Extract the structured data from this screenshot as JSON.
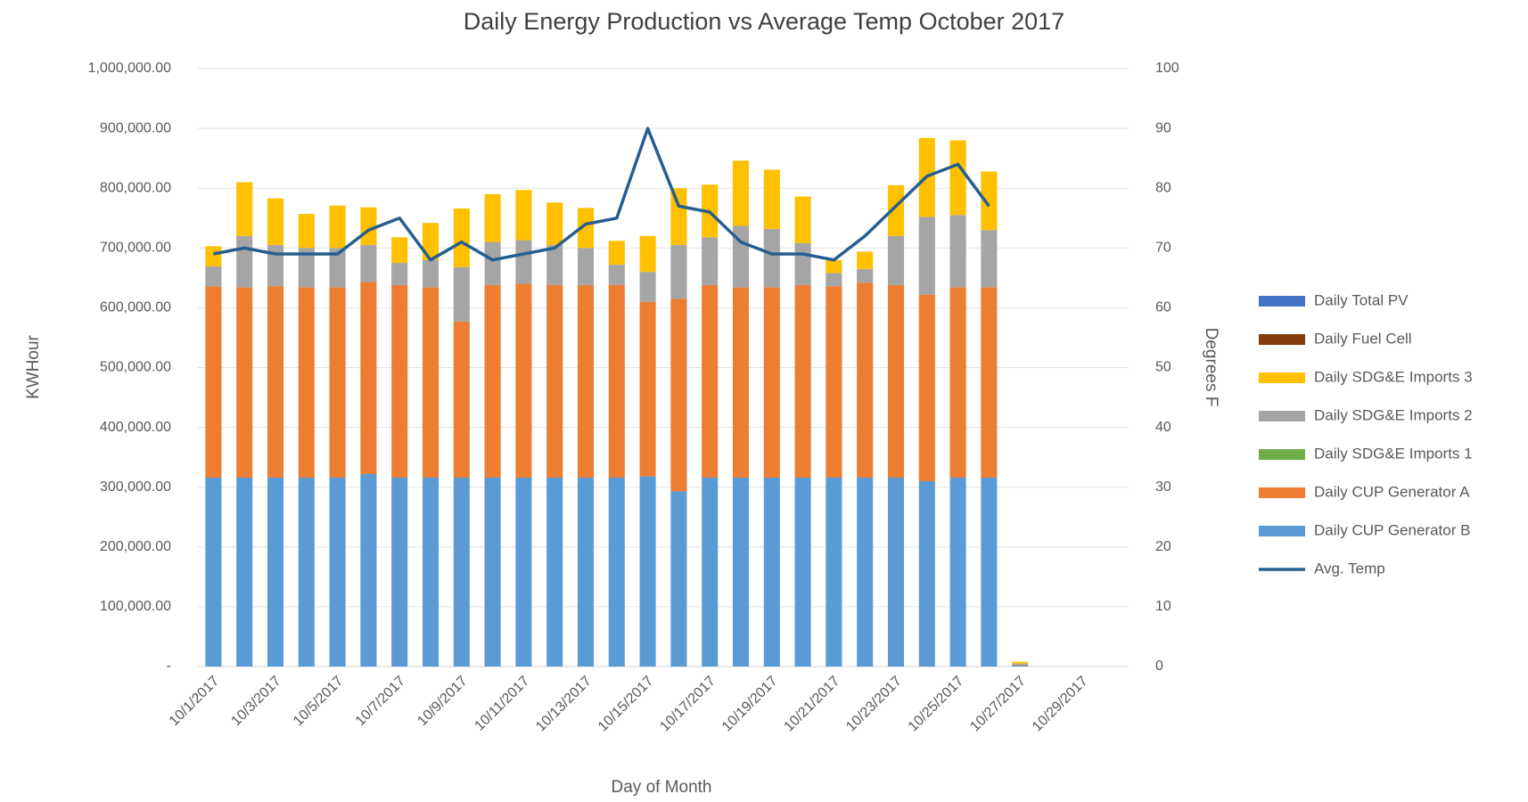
{
  "chart_data": {
    "type": "bar",
    "stacked": true,
    "title": "Daily Energy Production vs Average Temp October 2017",
    "x_label": "Day of Month",
    "y_label": "KWHour",
    "y2_label": "Degrees F",
    "categories": [
      "10/1/2017",
      null,
      "10/3/2017",
      null,
      "10/5/2017",
      null,
      "10/7/2017",
      null,
      "10/9/2017",
      null,
      "10/11/2017",
      null,
      "10/13/2017",
      null,
      "10/15/2017",
      null,
      "10/17/2017",
      null,
      "10/19/2017",
      null,
      "10/21/2017",
      null,
      "10/23/2017",
      null,
      "10/25/2017",
      null,
      "10/27/2017",
      null,
      "10/29/2017",
      null
    ],
    "ylim": [
      0,
      1000000
    ],
    "yticks": [
      {
        "value": 0,
        "label": "-"
      },
      {
        "value": 100000,
        "label": "100,000.00"
      },
      {
        "value": 200000,
        "label": "200,000.00"
      },
      {
        "value": 300000,
        "label": "300,000.00"
      },
      {
        "value": 400000,
        "label": "400,000.00"
      },
      {
        "value": 500000,
        "label": "500,000.00"
      },
      {
        "value": 600000,
        "label": "600,000.00"
      },
      {
        "value": 700000,
        "label": "700,000.00"
      },
      {
        "value": 800000,
        "label": "800,000.00"
      },
      {
        "value": 900000,
        "label": "900,000.00"
      },
      {
        "value": 1000000,
        "label": "1,000,000.00"
      }
    ],
    "y2lim": [
      0,
      100
    ],
    "y2ticks": [
      0,
      10,
      20,
      30,
      40,
      50,
      60,
      70,
      80,
      90,
      100
    ],
    "grid": true,
    "legend": "right",
    "series": [
      {
        "name": "Daily Total PV",
        "color": "#4472c4",
        "values": [
          0,
          0,
          0,
          0,
          0,
          0,
          0,
          0,
          0,
          0,
          0,
          0,
          0,
          0,
          0,
          0,
          0,
          0,
          0,
          0,
          0,
          0,
          0,
          0,
          0,
          0,
          0,
          null,
          null,
          null
        ]
      },
      {
        "name": "Daily Fuel Cell",
        "color": "#843c0c",
        "values": [
          0,
          0,
          0,
          0,
          0,
          0,
          0,
          0,
          0,
          0,
          0,
          0,
          0,
          0,
          0,
          0,
          0,
          0,
          0,
          0,
          0,
          0,
          0,
          0,
          0,
          0,
          0,
          null,
          null,
          null
        ]
      },
      {
        "name": "Daily SDG&E Imports 3",
        "color": "#ffc000",
        "values": [
          34000,
          90000,
          78000,
          57000,
          71000,
          63000,
          43000,
          62000,
          98000,
          80000,
          84000,
          71000,
          67000,
          40000,
          60000,
          95000,
          88000,
          109000,
          99000,
          78000,
          22000,
          29000,
          85000,
          132000,
          125000,
          98000,
          3000,
          null,
          null,
          null
        ]
      },
      {
        "name": "Daily SDG&E Imports 2",
        "color": "#a5a5a5",
        "values": [
          33000,
          86000,
          69000,
          66000,
          66000,
          62000,
          37000,
          46000,
          91000,
          72000,
          73000,
          67000,
          62000,
          34000,
          50000,
          90000,
          80000,
          103000,
          98000,
          70000,
          22000,
          23000,
          82000,
          130000,
          121000,
          96000,
          2000,
          null,
          null,
          null
        ]
      },
      {
        "name": "Daily SDG&E Imports 1",
        "color": "#70ad47",
        "values": [
          0,
          0,
          0,
          0,
          0,
          0,
          0,
          0,
          0,
          0,
          0,
          0,
          0,
          0,
          0,
          0,
          0,
          0,
          0,
          0,
          0,
          0,
          0,
          0,
          0,
          0,
          0,
          null,
          null,
          null
        ]
      },
      {
        "name": "Daily CUP Generator A",
        "color": "#ed7d31",
        "values": [
          320000,
          318000,
          320000,
          318000,
          318000,
          321000,
          322000,
          318000,
          261000,
          322000,
          324000,
          322000,
          322000,
          322000,
          292000,
          322000,
          322000,
          318000,
          318000,
          322000,
          320000,
          326000,
          322000,
          312000,
          318000,
          318000,
          1000,
          null,
          null,
          null
        ]
      },
      {
        "name": "Daily CUP Generator B",
        "color": "#5b9bd5",
        "values": [
          316000,
          316000,
          316000,
          316000,
          316000,
          322000,
          316000,
          316000,
          316000,
          316000,
          316000,
          316000,
          316000,
          316000,
          318000,
          293000,
          316000,
          316000,
          316000,
          316000,
          316000,
          316000,
          316000,
          310000,
          316000,
          316000,
          2000,
          null,
          null,
          null
        ]
      },
      {
        "name": "Avg. Temp",
        "color": "#255e91",
        "type": "line",
        "axis": "y2",
        "values": [
          69,
          70,
          69,
          69,
          69,
          73,
          75,
          68,
          71,
          68,
          69,
          70,
          74,
          75,
          90,
          77,
          76,
          71,
          69,
          69,
          68,
          72,
          77,
          82,
          84,
          77,
          null,
          null,
          null,
          null
        ]
      }
    ]
  }
}
